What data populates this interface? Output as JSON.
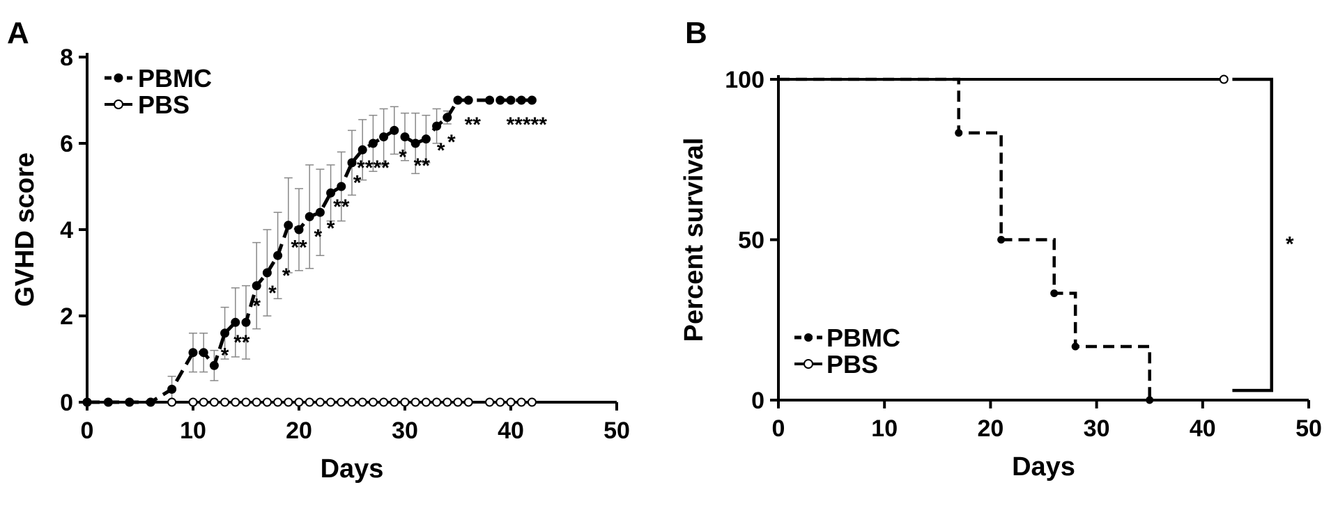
{
  "chart_data": [
    {
      "panel": "A",
      "type": "line",
      "xlabel": "Days",
      "ylabel": "GVHD score",
      "xlim": [
        0,
        50
      ],
      "ylim": [
        0,
        8
      ],
      "xticks": [
        "0",
        "10",
        "20",
        "30",
        "40",
        "50"
      ],
      "yticks": [
        "0",
        "2",
        "4",
        "6",
        "8"
      ],
      "legend_position": "top-left",
      "series": [
        {
          "name": "PBMC",
          "style": "dashed line, filled circle markers, error bars",
          "x": [
            0,
            2,
            4,
            6,
            8,
            10,
            11,
            12,
            13,
            14,
            15,
            16,
            17,
            18,
            19,
            20,
            21,
            22,
            23,
            24,
            25,
            26,
            27,
            28,
            29,
            30,
            31,
            32,
            33,
            34,
            35,
            36,
            38,
            39,
            40,
            41,
            42
          ],
          "y": [
            0,
            0,
            0,
            0,
            0.3,
            1.15,
            1.15,
            0.85,
            1.6,
            1.85,
            1.85,
            2.7,
            3.0,
            3.4,
            4.1,
            4.0,
            4.3,
            4.4,
            4.85,
            5.0,
            5.55,
            5.85,
            6.0,
            6.15,
            6.3,
            6.15,
            6.0,
            6.1,
            6.4,
            6.6,
            7.0,
            7.0,
            7.0,
            7.0,
            7.0,
            7.0,
            7.0
          ],
          "error": [
            0,
            0,
            0,
            0,
            0.3,
            0.45,
            0.45,
            0.35,
            0.6,
            0.8,
            0.85,
            1.0,
            1.0,
            1.0,
            1.1,
            0.95,
            1.2,
            1.0,
            0.65,
            0.8,
            0.75,
            0.7,
            0.65,
            0.65,
            0.55,
            0.55,
            0.7,
            0.55,
            0.4,
            0.15,
            0,
            0,
            0,
            0,
            0,
            0,
            0
          ]
        },
        {
          "name": "PBS",
          "style": "solid line, open circle markers",
          "x": [
            0,
            2,
            4,
            6,
            8,
            10,
            11,
            12,
            13,
            14,
            15,
            16,
            17,
            18,
            19,
            20,
            21,
            22,
            23,
            24,
            25,
            26,
            27,
            28,
            29,
            30,
            31,
            32,
            33,
            34,
            35,
            36,
            38,
            39,
            40,
            41,
            42
          ],
          "y": [
            0,
            0,
            0,
            0,
            0,
            0,
            0,
            0,
            0,
            0,
            0,
            0,
            0,
            0,
            0,
            0,
            0,
            0,
            0,
            0,
            0,
            0,
            0,
            0,
            0,
            0,
            0,
            0,
            0,
            0,
            0,
            0,
            0,
            0,
            0,
            0,
            0
          ]
        }
      ],
      "significance": [
        {
          "x": 13,
          "y": 1.15,
          "label": "*"
        },
        {
          "x": 14.6,
          "y": 1.45,
          "label": "**"
        },
        {
          "x": 16,
          "y": 2.3,
          "label": "*"
        },
        {
          "x": 17.5,
          "y": 2.6,
          "label": "*"
        },
        {
          "x": 18.8,
          "y": 3.0,
          "label": "*"
        },
        {
          "x": 20,
          "y": 3.65,
          "label": "**"
        },
        {
          "x": 21.8,
          "y": 3.9,
          "label": "*"
        },
        {
          "x": 23,
          "y": 4.1,
          "label": "*"
        },
        {
          "x": 24,
          "y": 4.6,
          "label": "**"
        },
        {
          "x": 25.5,
          "y": 5.15,
          "label": "*"
        },
        {
          "x": 27,
          "y": 5.5,
          "label": "****"
        },
        {
          "x": 29.8,
          "y": 5.75,
          "label": "*"
        },
        {
          "x": 31.6,
          "y": 5.55,
          "label": "**"
        },
        {
          "x": 33.4,
          "y": 5.9,
          "label": "*"
        },
        {
          "x": 34.4,
          "y": 6.1,
          "label": "*"
        },
        {
          "x": 36.4,
          "y": 6.5,
          "label": "**"
        },
        {
          "x": 41.5,
          "y": 6.5,
          "label": "*****"
        }
      ]
    },
    {
      "panel": "B",
      "type": "line",
      "subtype": "kaplan-meier step",
      "xlabel": "Days",
      "ylabel": "Percent survival",
      "xlim": [
        0,
        50
      ],
      "ylim": [
        0,
        100
      ],
      "xticks": [
        "0",
        "10",
        "20",
        "30",
        "40",
        "50"
      ],
      "yticks": [
        "0",
        "50",
        "100"
      ],
      "legend_position": "bottom-left",
      "series": [
        {
          "name": "PBMC",
          "style": "dashed step, filled circle markers",
          "x": [
            0,
            17,
            21,
            26,
            28,
            35
          ],
          "y": [
            100,
            83.3,
            50,
            33.3,
            16.7,
            0
          ]
        },
        {
          "name": "PBS",
          "style": "solid step, open circle marker",
          "x": [
            0,
            42
          ],
          "y": [
            100,
            100
          ]
        }
      ],
      "significance_bracket": {
        "x": 46.5,
        "y_top": 100,
        "y_bottom": 3,
        "label": "*"
      }
    }
  ]
}
